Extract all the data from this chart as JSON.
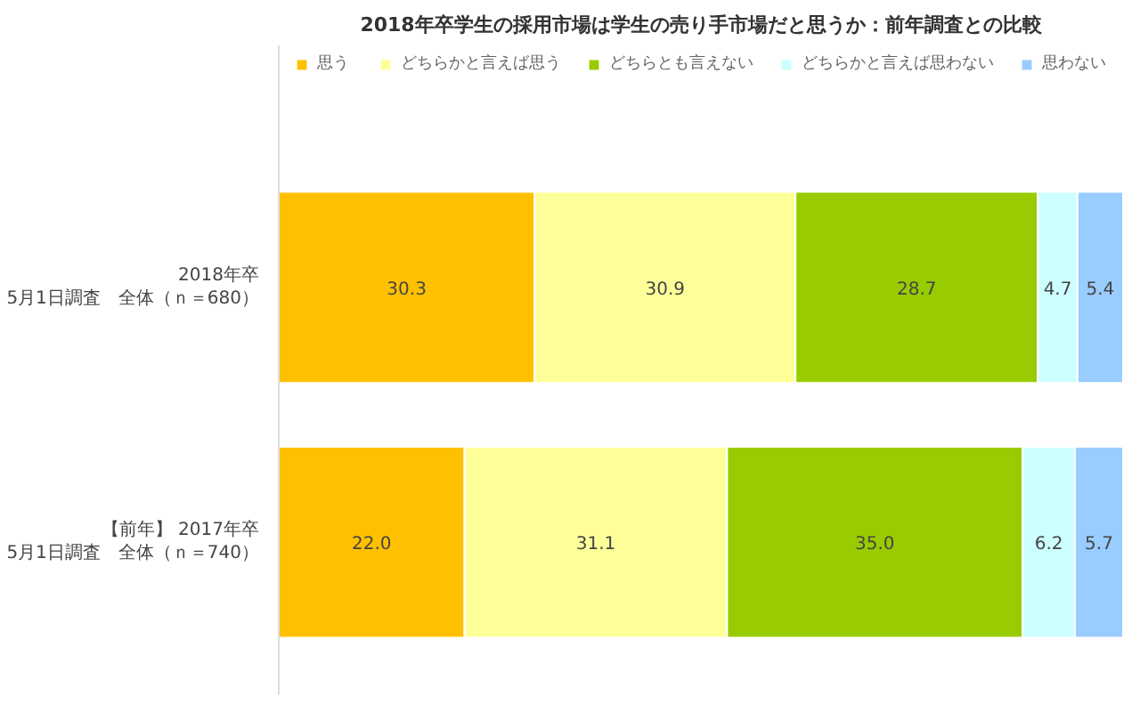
{
  "chart_data": {
    "type": "bar",
    "orientation": "horizontal",
    "stacked": true,
    "title": "2018年卒学生の採用市場は学生の売り手市場だと思うか：前年調査との比較",
    "categories": [
      "2018年卒\n5月1日調査　全体（ｎ＝680）",
      "【前年】 2017年卒\n5月1日調査　全体（ｎ＝740）"
    ],
    "series": [
      {
        "name": "思う",
        "color": "#ffc000",
        "values": [
          30.3,
          22.0
        ],
        "value_labels": [
          "30.3",
          "22.0"
        ]
      },
      {
        "name": "どちらかと言えば思う",
        "color": "#ffff99",
        "values": [
          30.9,
          31.1
        ],
        "value_labels": [
          "30.9",
          "31.1"
        ]
      },
      {
        "name": "どちらとも言えない",
        "color": "#99cc00",
        "values": [
          28.7,
          35.0
        ],
        "value_labels": [
          "28.7",
          "35.0"
        ]
      },
      {
        "name": "どちらかと言えば思わない",
        "color": "#ccffff",
        "values": [
          4.7,
          6.2
        ],
        "value_labels": [
          "4.7",
          "6.2"
        ]
      },
      {
        "name": "思わない",
        "color": "#99ccff",
        "values": [
          5.4,
          5.7
        ],
        "value_labels": [
          "5.4",
          "5.7"
        ]
      }
    ],
    "xlim": [
      0,
      100
    ],
    "legend": "top",
    "grid": false,
    "tick_labels": "y"
  }
}
